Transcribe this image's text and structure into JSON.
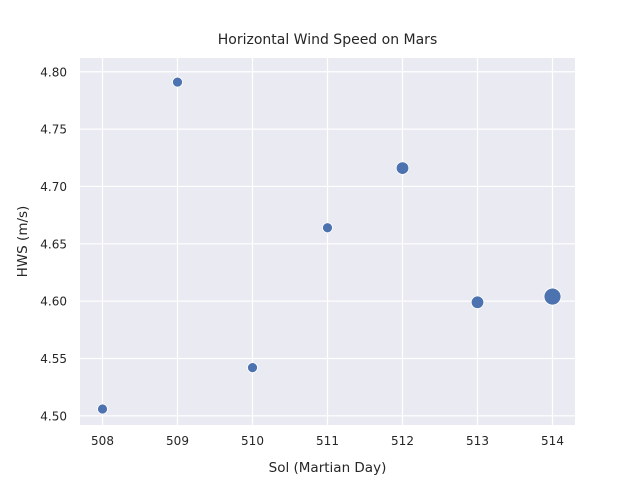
{
  "chart_data": {
    "type": "scatter",
    "title": "Horizontal Wind Speed on Mars",
    "xlabel": "Sol (Martian Day)",
    "ylabel": "HWS (m/s)",
    "xlim": [
      507.7,
      514.3
    ],
    "ylim": [
      4.492,
      4.812
    ],
    "xticks": [
      508,
      509,
      510,
      511,
      512,
      513,
      514
    ],
    "yticks": [
      4.5,
      4.55,
      4.6,
      4.65,
      4.7,
      4.75,
      4.8
    ],
    "ytick_labels": [
      "4.50",
      "4.55",
      "4.60",
      "4.65",
      "4.70",
      "4.75",
      "4.80"
    ],
    "points": [
      {
        "x": 508,
        "y": 4.506,
        "size": "small"
      },
      {
        "x": 509,
        "y": 4.791,
        "size": "small"
      },
      {
        "x": 510,
        "y": 4.542,
        "size": "small"
      },
      {
        "x": 511,
        "y": 4.664,
        "size": "small"
      },
      {
        "x": 512,
        "y": 4.716,
        "size": "medium"
      },
      {
        "x": 513,
        "y": 4.599,
        "size": "medium"
      },
      {
        "x": 514,
        "y": 4.604,
        "size": "large"
      }
    ],
    "grid": true,
    "colors": {
      "background": "#eaeaf2",
      "grid": "#ffffff",
      "marker": "#4c72b0",
      "text": "#262626"
    }
  }
}
